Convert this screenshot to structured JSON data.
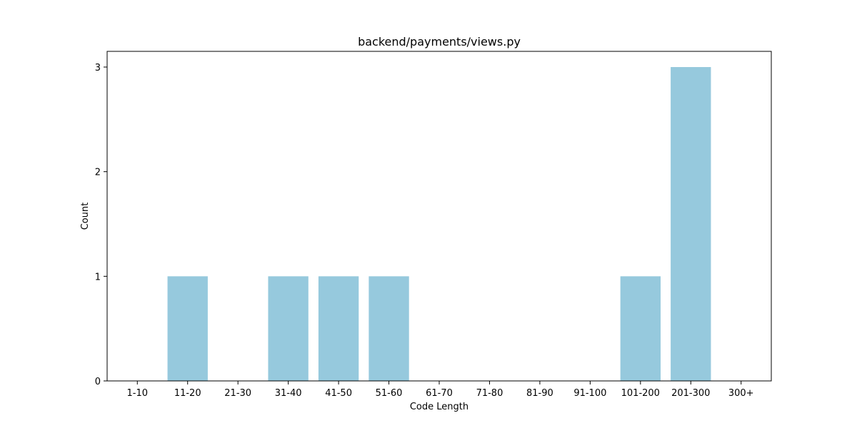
{
  "chart_data": {
    "type": "bar",
    "title": "backend/payments/views.py",
    "xlabel": "Code Length",
    "ylabel": "Count",
    "categories": [
      "1-10",
      "11-20",
      "21-30",
      "31-40",
      "41-50",
      "51-60",
      "61-70",
      "71-80",
      "81-90",
      "91-100",
      "101-200",
      "201-300",
      "300+"
    ],
    "values": [
      0,
      1,
      0,
      1,
      1,
      1,
      0,
      0,
      0,
      0,
      1,
      3,
      0
    ],
    "ylim": [
      0,
      3.15
    ],
    "yticks": [
      0,
      1,
      2,
      3
    ],
    "grid": false,
    "legend": "none",
    "bar_color": "#96c9dd",
    "axis_color": "#000000"
  }
}
